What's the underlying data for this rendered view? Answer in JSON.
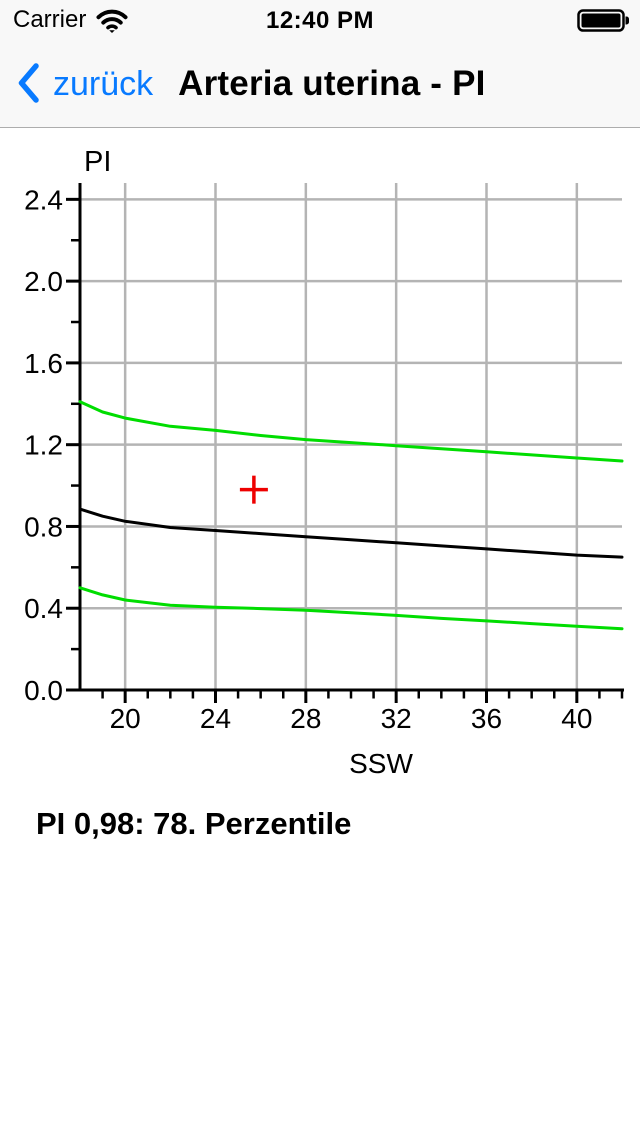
{
  "status_bar": {
    "carrier": "Carrier",
    "time": "12:40 PM"
  },
  "nav_bar": {
    "back_label": "zurück",
    "title": "Arteria uterina - PI"
  },
  "result_text": "PI 0,98: 78. Perzentile",
  "colors": {
    "accent_blue": "#087aff",
    "curve_green": "#00dd00",
    "curve_black": "#000000",
    "marker_red": "#ee0000",
    "gridline_gray": "#b4b4b4",
    "axis_black": "#000000",
    "header_bg": "#f8f8f8"
  },
  "chart_data": {
    "type": "line",
    "title": "",
    "xlabel": "SSW",
    "ylabel": "PI",
    "xlim": [
      18,
      42
    ],
    "ylim": [
      0,
      2.48
    ],
    "grid": true,
    "legend": "none",
    "x_major_ticks": [
      20,
      24,
      28,
      32,
      36,
      40
    ],
    "x_major_labels": [
      "20",
      "24",
      "28",
      "32",
      "36",
      "40"
    ],
    "x_minor_step": 1,
    "y_major_ticks": [
      0.0,
      0.4,
      0.8,
      1.2,
      1.6,
      2.0,
      2.4
    ],
    "y_major_labels": [
      "0.0",
      "0.4",
      "0.8",
      "1.2",
      "1.6",
      "2.0",
      "2.4"
    ],
    "y_minor_step": 0.2,
    "x": [
      18,
      19,
      20,
      22,
      24,
      26,
      28,
      30,
      32,
      34,
      36,
      38,
      40,
      42
    ],
    "series": [
      {
        "name": "upper-percentile-95",
        "color": "#00dd00",
        "values": [
          1.41,
          1.36,
          1.33,
          1.29,
          1.27,
          1.245,
          1.225,
          1.21,
          1.195,
          1.18,
          1.165,
          1.15,
          1.135,
          1.12
        ]
      },
      {
        "name": "median-50",
        "color": "#000000",
        "values": [
          0.885,
          0.85,
          0.825,
          0.795,
          0.78,
          0.765,
          0.75,
          0.735,
          0.72,
          0.705,
          0.69,
          0.675,
          0.66,
          0.65
        ]
      },
      {
        "name": "lower-percentile-5",
        "color": "#00dd00",
        "values": [
          0.5,
          0.465,
          0.44,
          0.415,
          0.405,
          0.398,
          0.39,
          0.378,
          0.365,
          0.35,
          0.338,
          0.325,
          0.312,
          0.3
        ]
      }
    ],
    "marker": {
      "x": 25.7,
      "y": 0.98,
      "shape": "cross",
      "color": "#ee0000"
    }
  }
}
